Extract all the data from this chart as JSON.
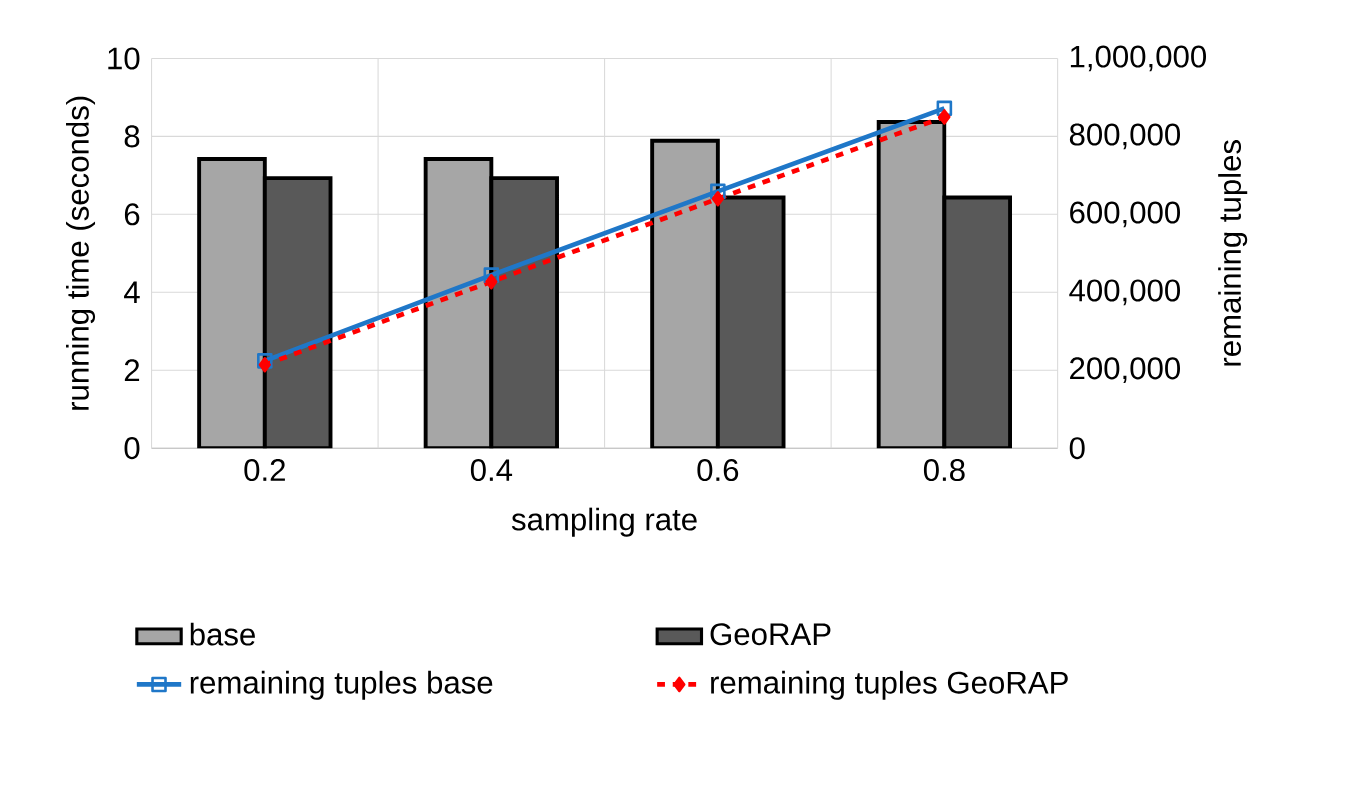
{
  "chart_data": {
    "type": "bar",
    "xlabel": "sampling rate",
    "ylabel": "running time (seconds)",
    "y2label": "remaining tuples",
    "categories": [
      "0.2",
      "0.4",
      "0.6",
      "0.8"
    ],
    "series": [
      {
        "name": "base",
        "color": "#a6a6a6",
        "values": [
          7.42,
          7.42,
          7.89,
          8.37
        ]
      },
      {
        "name": "GeoRAP",
        "color": "#595959",
        "values": [
          6.93,
          6.93,
          6.43,
          6.43
        ]
      },
      {
        "name": "remaining tuples base",
        "type": "line",
        "axis": "y2",
        "color": "#1f77c8",
        "marker": "square",
        "line_style": "solid",
        "values": [
          224000,
          444000,
          659000,
          872000
        ]
      },
      {
        "name": "remaining tuples GeoRAP",
        "type": "line",
        "axis": "y2",
        "color": "#ff0000",
        "marker": "diamond",
        "line_style": "dashed",
        "values": [
          214000,
          427000,
          640000,
          850000
        ]
      }
    ],
    "ylim": [
      0,
      10
    ],
    "yticks": [
      0,
      2,
      4,
      6,
      8,
      10
    ],
    "y2lim": [
      0,
      1000000
    ],
    "y2ticks": [
      {
        "value": 0,
        "label": "0"
      },
      {
        "value": 200000,
        "label": "200,000"
      },
      {
        "value": 400000,
        "label": "400,000"
      },
      {
        "value": 600000,
        "label": "600,000"
      },
      {
        "value": 800000,
        "label": "800,000"
      },
      {
        "value": 1000000,
        "label": "1,000,000"
      }
    ],
    "grid": true,
    "legend": "bottom"
  }
}
